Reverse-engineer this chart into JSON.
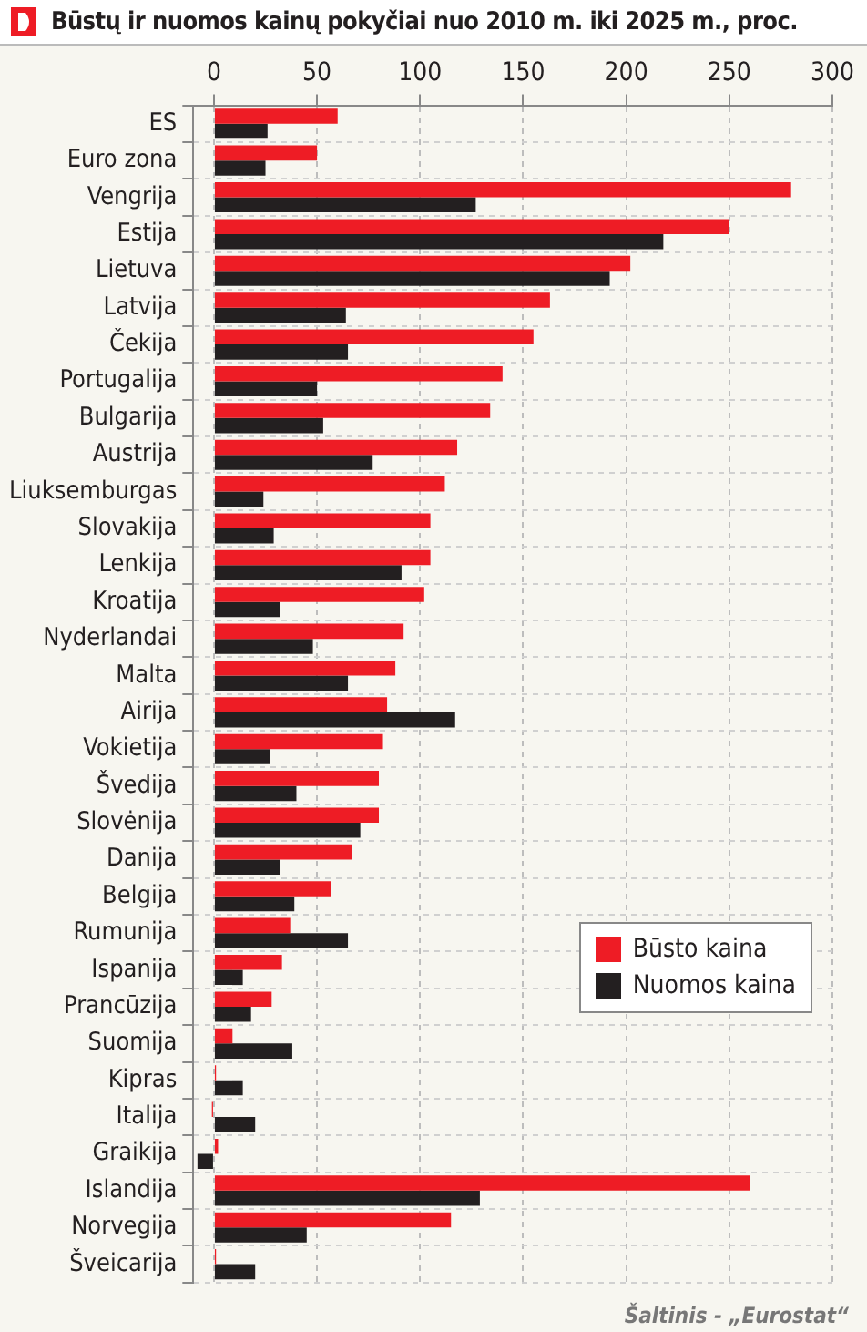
{
  "chart_data": {
    "type": "bar",
    "orientation": "horizontal",
    "title": "Būstų ir nuomos kainų pokyčiai nuo 2010 m. iki 2025 m., proc.",
    "categories": [
      "ES",
      "Euro zona",
      "Vengrija",
      "Estija",
      "Lietuva",
      "Latvija",
      "Čekija",
      "Portugalija",
      "Bulgarija",
      "Austrija",
      "Liuksemburgas",
      "Slovakija",
      "Lenkija",
      "Kroatija",
      "Nyderlandai",
      "Malta",
      "Airija",
      "Vokietija",
      "Švedija",
      "Slovėnija",
      "Danija",
      "Belgija",
      "Rumunija",
      "Ispanija",
      "Prancūzija",
      "Suomija",
      "Kipras",
      "Italija",
      "Graikija",
      "Islandija",
      "Norvegija",
      "Šveicarija"
    ],
    "series": [
      {
        "name": "Būsto kaina",
        "color": "#ee1c25",
        "values": [
          60,
          50,
          280,
          250,
          202,
          163,
          155,
          140,
          134,
          118,
          112,
          105,
          105,
          102,
          92,
          88,
          84,
          82,
          80,
          80,
          67,
          57,
          37,
          33,
          28,
          9,
          1,
          -1,
          2,
          260,
          115,
          1
        ]
      },
      {
        "name": "Nuomos kaina",
        "color": "#231f20",
        "values": [
          26,
          25,
          127,
          218,
          192,
          64,
          65,
          50,
          53,
          77,
          24,
          29,
          91,
          32,
          48,
          65,
          117,
          27,
          40,
          71,
          32,
          39,
          65,
          14,
          18,
          38,
          14,
          20,
          -8,
          129,
          45,
          20
        ]
      }
    ],
    "xlim": [
      -10,
      300
    ],
    "xticks": [
      0,
      50,
      100,
      150,
      200,
      250,
      300
    ],
    "grid": true,
    "legend": "bottom right",
    "annotations": [
      "Šaltinis - „Eurostat“"
    ]
  }
}
